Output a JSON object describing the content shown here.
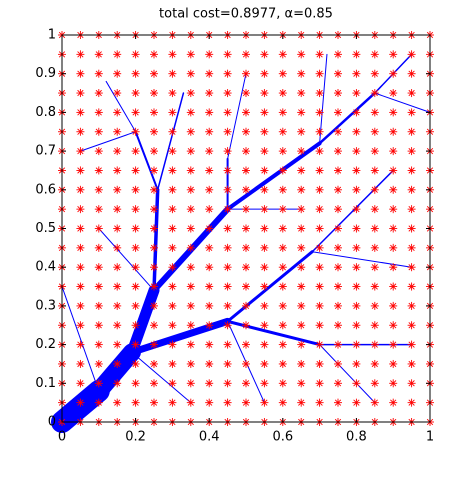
{
  "chart_data": {
    "type": "network",
    "title": "total cost=0.8977, α=0.85",
    "xlim": [
      0,
      1
    ],
    "ylim": [
      0,
      1
    ],
    "xticks": [
      0,
      0.2,
      0.4,
      0.6,
      0.8,
      1
    ],
    "yticks": [
      0,
      0.1,
      0.2,
      0.3,
      0.4,
      0.5,
      0.6,
      0.7,
      0.8,
      0.9,
      1
    ],
    "marker_color": "#ff0000",
    "edge_color": "#0000ff",
    "points": {
      "x": [
        0,
        0.05,
        0.1,
        0.15,
        0.2,
        0.25,
        0.3,
        0.35,
        0.4,
        0.45,
        0.5,
        0.55,
        0.6,
        0.65,
        0.7,
        0.75,
        0.8,
        0.85,
        0.9,
        0.95,
        1
      ],
      "y": [
        0,
        0.05,
        0.1,
        0.15,
        0.2,
        0.25,
        0.3,
        0.35,
        0.4,
        0.45,
        0.5,
        0.55,
        0.6,
        0.65,
        0.7,
        0.75,
        0.8,
        0.85,
        0.9,
        0.95,
        1
      ]
    },
    "edges": [
      {
        "from": [
          0,
          0
        ],
        "to": [
          0.1,
          0.08
        ],
        "w": 22
      },
      {
        "from": [
          0.1,
          0.08
        ],
        "to": [
          0.19,
          0.18
        ],
        "w": 18
      },
      {
        "from": [
          0.19,
          0.18
        ],
        "to": [
          0.25,
          0.34
        ],
        "w": 11
      },
      {
        "from": [
          0.19,
          0.18
        ],
        "to": [
          0.45,
          0.26
        ],
        "w": 7
      },
      {
        "from": [
          0.25,
          0.34
        ],
        "to": [
          0.45,
          0.55
        ],
        "w": 6
      },
      {
        "from": [
          0.45,
          0.55
        ],
        "to": [
          0.7,
          0.72
        ],
        "w": 4
      },
      {
        "from": [
          0.7,
          0.72
        ],
        "to": [
          0.85,
          0.85
        ],
        "w": 2.5
      },
      {
        "from": [
          0.85,
          0.85
        ],
        "to": [
          0.95,
          0.95
        ],
        "w": 1.5
      },
      {
        "from": [
          0.25,
          0.34
        ],
        "to": [
          0.26,
          0.6
        ],
        "w": 3.5
      },
      {
        "from": [
          0.26,
          0.6
        ],
        "to": [
          0.2,
          0.75
        ],
        "w": 2
      },
      {
        "from": [
          0.2,
          0.75
        ],
        "to": [
          0.12,
          0.88
        ],
        "w": 1
      },
      {
        "from": [
          0.26,
          0.6
        ],
        "to": [
          0.33,
          0.85
        ],
        "w": 1.5
      },
      {
        "from": [
          0.45,
          0.55
        ],
        "to": [
          0.45,
          0.68
        ],
        "w": 2
      },
      {
        "from": [
          0.45,
          0.68
        ],
        "to": [
          0.5,
          0.9
        ],
        "w": 1
      },
      {
        "from": [
          0.7,
          0.72
        ],
        "to": [
          0.72,
          0.95
        ],
        "w": 1
      },
      {
        "from": [
          0.45,
          0.26
        ],
        "to": [
          0.68,
          0.44
        ],
        "w": 3
      },
      {
        "from": [
          0.68,
          0.44
        ],
        "to": [
          0.9,
          0.65
        ],
        "w": 1.5
      },
      {
        "from": [
          0.45,
          0.26
        ],
        "to": [
          0.7,
          0.2
        ],
        "w": 3
      },
      {
        "from": [
          0.7,
          0.2
        ],
        "to": [
          0.95,
          0.2
        ],
        "w": 1.5
      },
      {
        "from": [
          0.7,
          0.2
        ],
        "to": [
          0.85,
          0.05
        ],
        "w": 1
      },
      {
        "from": [
          0.45,
          0.26
        ],
        "to": [
          0.55,
          0.05
        ],
        "w": 1
      },
      {
        "from": [
          0.25,
          0.34
        ],
        "to": [
          0.1,
          0.5
        ],
        "w": 1
      },
      {
        "from": [
          0.1,
          0.08
        ],
        "to": [
          0,
          0.35
        ],
        "w": 1
      },
      {
        "from": [
          0.19,
          0.18
        ],
        "to": [
          0.35,
          0.05
        ],
        "w": 1
      },
      {
        "from": [
          0.68,
          0.44
        ],
        "to": [
          0.95,
          0.4
        ],
        "w": 1
      },
      {
        "from": [
          0.45,
          0.55
        ],
        "to": [
          0.65,
          0.55
        ],
        "w": 1
      },
      {
        "from": [
          0.85,
          0.85
        ],
        "to": [
          1,
          0.8
        ],
        "w": 1
      },
      {
        "from": [
          0.2,
          0.75
        ],
        "to": [
          0.05,
          0.7
        ],
        "w": 1
      }
    ]
  }
}
